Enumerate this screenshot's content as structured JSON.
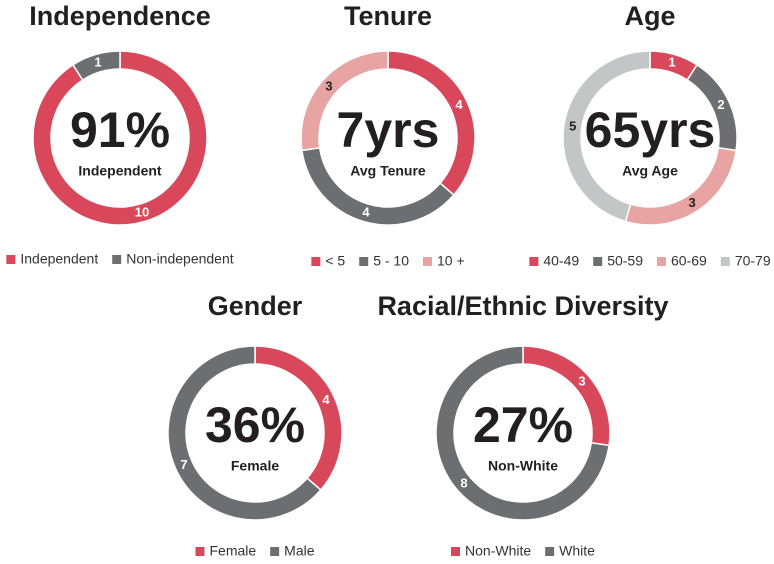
{
  "chart_data": [
    {
      "type": "pie",
      "title": "Independence",
      "center_value": "91%",
      "center_label": "Independent",
      "categories": [
        "Independent",
        "Non-independent"
      ],
      "values": [
        10,
        1
      ],
      "colors": [
        "#d9485a",
        "#6d6e71"
      ]
    },
    {
      "type": "pie",
      "title": "Tenure",
      "center_value": "7yrs",
      "center_label": "Avg Tenure",
      "categories": [
        "< 5",
        "5 - 10",
        "10 +"
      ],
      "values": [
        4,
        4,
        3
      ],
      "colors": [
        "#d9485a",
        "#6d6e71",
        "#e8a3a3"
      ]
    },
    {
      "type": "pie",
      "title": "Age",
      "center_value": "65yrs",
      "center_label": "Avg Age",
      "categories": [
        "40-49",
        "50-59",
        "60-69",
        "70-79"
      ],
      "values": [
        1,
        2,
        3,
        5
      ],
      "colors": [
        "#d9485a",
        "#6d6e71",
        "#e8a3a3",
        "#c4c5c7"
      ]
    },
    {
      "type": "pie",
      "title": "Gender",
      "center_value": "36%",
      "center_label": "Female",
      "categories": [
        "Female",
        "Male"
      ],
      "values": [
        4,
        7
      ],
      "colors": [
        "#d9485a",
        "#6d6e71"
      ]
    },
    {
      "type": "pie",
      "title": "Racial/Ethnic Diversity",
      "center_value": "27%",
      "center_label": "Non-White",
      "categories": [
        "Non-White",
        "White"
      ],
      "values": [
        3,
        8
      ],
      "colors": [
        "#d9485a",
        "#6d6e71"
      ]
    }
  ]
}
